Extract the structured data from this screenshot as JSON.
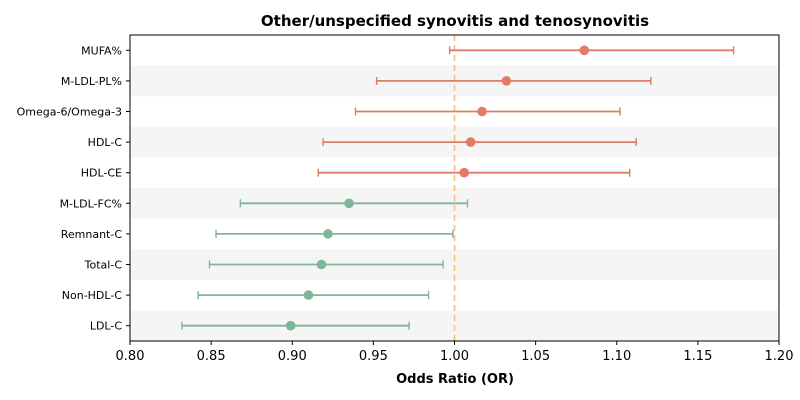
{
  "chart_data": {
    "type": "forest",
    "title": "Other/unspecified synovitis and tenosynovitis",
    "xlabel": "Odds Ratio (OR)",
    "xlim": [
      0.8,
      1.2
    ],
    "xticks": [
      "0.80",
      "0.85",
      "0.90",
      "0.95",
      "1.00",
      "1.05",
      "1.10",
      "1.15",
      "1.20"
    ],
    "reference_line": 1.0,
    "colors": {
      "positive": "#E07B65",
      "negative": "#7FB69A",
      "reference": "#F5C27A",
      "band": "#F5F5F5"
    },
    "items": [
      {
        "label": "MUFA%",
        "or": 1.08,
        "lo": 0.997,
        "hi": 1.172
      },
      {
        "label": "M-LDL-PL%",
        "or": 1.032,
        "lo": 0.952,
        "hi": 1.121
      },
      {
        "label": "Omega-6/Omega-3",
        "or": 1.017,
        "lo": 0.939,
        "hi": 1.102
      },
      {
        "label": "HDL-C",
        "or": 1.01,
        "lo": 0.919,
        "hi": 1.112
      },
      {
        "label": "HDL-CE",
        "or": 1.006,
        "lo": 0.916,
        "hi": 1.108
      },
      {
        "label": "M-LDL-FC%",
        "or": 0.935,
        "lo": 0.868,
        "hi": 1.008
      },
      {
        "label": "Remnant-C",
        "or": 0.922,
        "lo": 0.853,
        "hi": 0.999
      },
      {
        "label": "Total-C",
        "or": 0.918,
        "lo": 0.849,
        "hi": 0.993
      },
      {
        "label": "Non-HDL-C",
        "or": 0.91,
        "lo": 0.842,
        "hi": 0.984
      },
      {
        "label": "LDL-C",
        "or": 0.899,
        "lo": 0.832,
        "hi": 0.972
      }
    ]
  }
}
